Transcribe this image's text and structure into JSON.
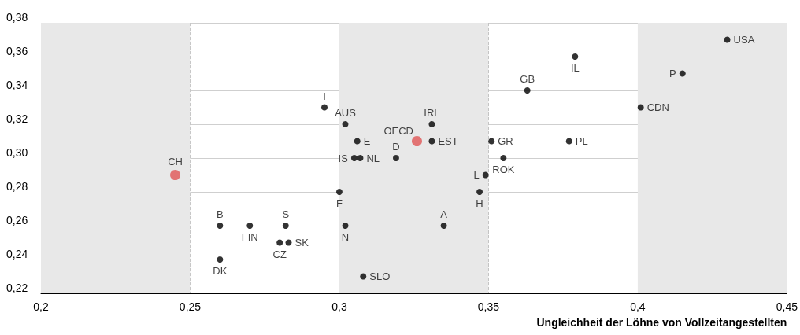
{
  "chart_data": {
    "type": "scatter",
    "xlabel": "Ungleichheit der Löhne von Vollzeitangestellten",
    "xlim": [
      0.2,
      0.45
    ],
    "xticks": [
      {
        "value": 0.2,
        "label": "0,2"
      },
      {
        "value": 0.25,
        "label": "0,25"
      },
      {
        "value": 0.3,
        "label": "0,3"
      },
      {
        "value": 0.35,
        "label": "0,35"
      },
      {
        "value": 0.4,
        "label": "0,4"
      },
      {
        "value": 0.45,
        "label": "0,45"
      }
    ],
    "ylim": [
      0.22,
      0.38
    ],
    "yticks": [
      {
        "value": 0.22,
        "label": "0,22"
      },
      {
        "value": 0.24,
        "label": "0,24"
      },
      {
        "value": 0.26,
        "label": "0,26"
      },
      {
        "value": 0.28,
        "label": "0,28"
      },
      {
        "value": 0.3,
        "label": "0,30"
      },
      {
        "value": 0.32,
        "label": "0,32"
      },
      {
        "value": 0.34,
        "label": "0,34"
      },
      {
        "value": 0.36,
        "label": "0,36"
      },
      {
        "value": 0.38,
        "label": "0,38"
      }
    ],
    "grid": true,
    "marker": "circle",
    "bands": [
      {
        "axis": "x",
        "from": 0.2,
        "to": 0.25,
        "color": "#e8e8e8"
      },
      {
        "axis": "x",
        "from": 0.3,
        "to": 0.35,
        "color": "#e8e8e8"
      },
      {
        "axis": "x",
        "from": 0.4,
        "to": 0.45,
        "color": "#e8e8e8"
      }
    ],
    "series": [
      {
        "name": "CH",
        "color": "#e05555",
        "x": [
          0.245
        ],
        "values": [
          0.29
        ]
      },
      {
        "name": "B",
        "color": "#000000",
        "x": [
          0.26
        ],
        "values": [
          0.26
        ]
      },
      {
        "name": "DK",
        "color": "#000000",
        "x": [
          0.26
        ],
        "values": [
          0.24
        ]
      },
      {
        "name": "FIN",
        "color": "#000000",
        "x": [
          0.27
        ],
        "values": [
          0.26
        ]
      },
      {
        "name": "S",
        "color": "#000000",
        "x": [
          0.282
        ],
        "values": [
          0.26
        ]
      },
      {
        "name": "CZ",
        "color": "#000000",
        "x": [
          0.28
        ],
        "values": [
          0.25
        ]
      },
      {
        "name": "SK",
        "color": "#000000",
        "x": [
          0.283
        ],
        "values": [
          0.25
        ]
      },
      {
        "name": "I",
        "color": "#000000",
        "x": [
          0.295
        ],
        "values": [
          0.33
        ]
      },
      {
        "name": "F",
        "color": "#000000",
        "x": [
          0.3
        ],
        "values": [
          0.28
        ]
      },
      {
        "name": "N",
        "color": "#000000",
        "x": [
          0.302
        ],
        "values": [
          0.26
        ]
      },
      {
        "name": "AUS",
        "color": "#000000",
        "x": [
          0.302
        ],
        "values": [
          0.32
        ]
      },
      {
        "name": "IS",
        "color": "#000000",
        "x": [
          0.305
        ],
        "values": [
          0.3
        ]
      },
      {
        "name": "NL",
        "color": "#000000",
        "x": [
          0.307
        ],
        "values": [
          0.3
        ]
      },
      {
        "name": "E",
        "color": "#000000",
        "x": [
          0.306
        ],
        "values": [
          0.31
        ]
      },
      {
        "name": "SLO",
        "color": "#000000",
        "x": [
          0.308
        ],
        "values": [
          0.23
        ]
      },
      {
        "name": "D",
        "color": "#000000",
        "x": [
          0.319
        ],
        "values": [
          0.3
        ]
      },
      {
        "name": "OECD",
        "color": "#e05555",
        "x": [
          0.326
        ],
        "values": [
          0.31
        ]
      },
      {
        "name": "IRL",
        "color": "#000000",
        "x": [
          0.331
        ],
        "values": [
          0.32
        ]
      },
      {
        "name": "EST",
        "color": "#000000",
        "x": [
          0.331
        ],
        "values": [
          0.31
        ]
      },
      {
        "name": "A",
        "color": "#000000",
        "x": [
          0.335
        ],
        "values": [
          0.26
        ]
      },
      {
        "name": "H",
        "color": "#000000",
        "x": [
          0.347
        ],
        "values": [
          0.28
        ]
      },
      {
        "name": "L",
        "color": "#000000",
        "x": [
          0.349
        ],
        "values": [
          0.29
        ]
      },
      {
        "name": "GR",
        "color": "#000000",
        "x": [
          0.351
        ],
        "values": [
          0.31
        ]
      },
      {
        "name": "ROK",
        "color": "#000000",
        "x": [
          0.355
        ],
        "values": [
          0.3
        ]
      },
      {
        "name": "GB",
        "color": "#000000",
        "x": [
          0.363
        ],
        "values": [
          0.34
        ]
      },
      {
        "name": "PL",
        "color": "#000000",
        "x": [
          0.377
        ],
        "values": [
          0.31
        ]
      },
      {
        "name": "IL",
        "color": "#000000",
        "x": [
          0.379
        ],
        "values": [
          0.36
        ]
      },
      {
        "name": "CDN",
        "color": "#000000",
        "x": [
          0.401
        ],
        "values": [
          0.33
        ]
      },
      {
        "name": "P",
        "color": "#000000",
        "x": [
          0.415
        ],
        "values": [
          0.35
        ]
      },
      {
        "name": "USA",
        "color": "#000000",
        "x": [
          0.43
        ],
        "values": [
          0.37
        ]
      }
    ]
  }
}
